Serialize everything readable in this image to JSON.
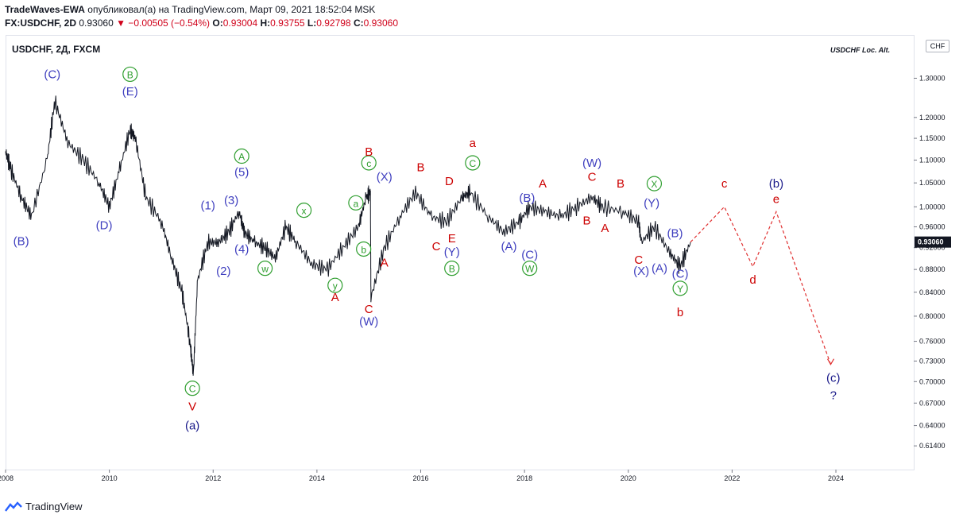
{
  "header": {
    "author": "TradeWaves-EWA",
    "published": "опубликовал(а) на TradingView.com, Март 09, 2021 18:52:04 MSK",
    "symbol_full": "FX:USDCHF, 2D",
    "price": "0.93060",
    "change": "▼ −0.00505 (−0.54%)",
    "o_label": "O:",
    "o": "0.93004",
    "h_label": "H:",
    "h": "0.93755",
    "l_label": "L:",
    "l": "0.92798",
    "c_label": "C:",
    "c": "0.93060"
  },
  "chart_header": {
    "symbol": "USDCHF, 2Д, FXCM",
    "note": "USDCHF Loc. Alt.",
    "currency": "CHF"
  },
  "footer": {
    "brand": "TradingView"
  },
  "colors": {
    "blue": "#3f3fbf",
    "red": "#cc0000",
    "green": "#2e9e2e",
    "navy": "#1a1a8a",
    "price_tag": "#131722"
  },
  "chart_data": {
    "type": "line",
    "price_scale": "log",
    "x_range": [
      2008.0,
      2025.5
    ],
    "y_range": [
      0.585,
      1.42
    ],
    "xticks": [
      "2008",
      "2010",
      "2012",
      "2014",
      "2016",
      "2018",
      "2020",
      "2022",
      "2024"
    ],
    "yticks": [
      "1.30000",
      "1.20000",
      "1.15000",
      "1.10000",
      "1.05000",
      "1.00000",
      "0.96000",
      "0.92000",
      "0.88000",
      "0.84000",
      "0.80000",
      "0.76000",
      "0.73000",
      "0.70000",
      "0.67000",
      "0.64000",
      "0.61400"
    ],
    "last_price_label": "0.93060",
    "series": [
      {
        "x": [
          2008.0,
          2008.1,
          2008.3,
          2008.5,
          2008.8,
          2008.95,
          2009.2,
          2009.5,
          2009.8,
          2010.0,
          2010.2,
          2010.4,
          2010.5,
          2010.7,
          2011.0,
          2011.2,
          2011.4,
          2011.55,
          2011.62,
          2011.7,
          2011.9,
          2012.1,
          2012.3,
          2012.5,
          2012.6,
          2012.8,
          2013.0,
          2013.2,
          2013.4,
          2013.6,
          2013.9,
          2014.2,
          2014.5,
          2014.8,
          2014.95,
          2015.03,
          2015.04,
          2015.3,
          2015.6,
          2015.9,
          2016.2,
          2016.5,
          2016.8,
          2016.95,
          2017.3,
          2017.6,
          2017.9,
          2018.1,
          2018.4,
          2018.7,
          2019.0,
          2019.3,
          2019.5,
          2019.9,
          2020.2,
          2020.25,
          2020.5,
          2020.8,
          2021.0,
          2021.2
        ],
        "y": [
          1.12,
          1.08,
          1.02,
          0.98,
          1.1,
          1.24,
          1.14,
          1.1,
          1.05,
          1.0,
          1.08,
          1.17,
          1.15,
          1.02,
          0.97,
          0.9,
          0.84,
          0.76,
          0.71,
          0.86,
          0.93,
          0.93,
          0.95,
          0.99,
          0.95,
          0.93,
          0.92,
          0.9,
          0.96,
          0.93,
          0.89,
          0.88,
          0.92,
          0.96,
          1.02,
          1.03,
          0.83,
          0.92,
          0.98,
          1.03,
          0.98,
          0.97,
          1.02,
          1.03,
          0.98,
          0.95,
          0.97,
          1.0,
          0.99,
          0.98,
          1.0,
          1.02,
          1.0,
          0.99,
          0.97,
          0.93,
          0.96,
          0.91,
          0.885,
          0.9306
        ]
      }
    ],
    "wave_labels": [
      {
        "text": "(B)",
        "x": 2008.3,
        "y": 0.925,
        "color": "blue"
      },
      {
        "text": "(C)",
        "x": 2008.9,
        "y": 1.3,
        "color": "blue"
      },
      {
        "text": "B",
        "x": 2010.4,
        "y": 1.3,
        "color": "green",
        "circle": true
      },
      {
        "text": "(E)",
        "x": 2010.4,
        "y": 1.255,
        "color": "blue"
      },
      {
        "text": "(D)",
        "x": 2009.9,
        "y": 0.955,
        "color": "blue"
      },
      {
        "text": "C",
        "x": 2011.6,
        "y": 0.685,
        "color": "green",
        "circle": true
      },
      {
        "text": "V",
        "x": 2011.6,
        "y": 0.66,
        "color": "red"
      },
      {
        "text": "(a)",
        "x": 2011.6,
        "y": 0.635,
        "color": "navy"
      },
      {
        "text": "(1)",
        "x": 2011.9,
        "y": 0.995,
        "color": "blue"
      },
      {
        "text": "(2)",
        "x": 2012.2,
        "y": 0.87,
        "color": "blue"
      },
      {
        "text": "(3)",
        "x": 2012.35,
        "y": 1.005,
        "color": "blue"
      },
      {
        "text": "(4)",
        "x": 2012.55,
        "y": 0.91,
        "color": "blue"
      },
      {
        "text": "(5)",
        "x": 2012.55,
        "y": 1.065,
        "color": "blue"
      },
      {
        "text": "A",
        "x": 2012.55,
        "y": 1.1,
        "color": "green",
        "circle": true
      },
      {
        "text": "w",
        "x": 2013.0,
        "y": 0.875,
        "color": "green",
        "circle": true
      },
      {
        "text": "x",
        "x": 2013.75,
        "y": 0.985,
        "color": "green",
        "circle": true
      },
      {
        "text": "y",
        "x": 2014.35,
        "y": 0.845,
        "color": "green",
        "circle": true
      },
      {
        "text": "A",
        "x": 2014.35,
        "y": 0.825,
        "color": "red"
      },
      {
        "text": "a",
        "x": 2014.75,
        "y": 1.0,
        "color": "green",
        "circle": true
      },
      {
        "text": "b",
        "x": 2014.9,
        "y": 0.91,
        "color": "green",
        "circle": true
      },
      {
        "text": "c",
        "x": 2015.0,
        "y": 1.085,
        "color": "green",
        "circle": true
      },
      {
        "text": "B",
        "x": 2015.0,
        "y": 1.11,
        "color": "red"
      },
      {
        "text": "(X)",
        "x": 2015.3,
        "y": 1.055,
        "color": "blue"
      },
      {
        "text": "A",
        "x": 2015.3,
        "y": 0.885,
        "color": "red"
      },
      {
        "text": "C",
        "x": 2015.0,
        "y": 0.805,
        "color": "red"
      },
      {
        "text": "(W)",
        "x": 2015.0,
        "y": 0.785,
        "color": "blue"
      },
      {
        "text": "B",
        "x": 2016.0,
        "y": 1.075,
        "color": "red"
      },
      {
        "text": "D",
        "x": 2016.55,
        "y": 1.045,
        "color": "red"
      },
      {
        "text": "C",
        "x": 2016.3,
        "y": 0.915,
        "color": "red"
      },
      {
        "text": "E",
        "x": 2016.6,
        "y": 0.93,
        "color": "red"
      },
      {
        "text": "(Y)",
        "x": 2016.6,
        "y": 0.905,
        "color": "blue"
      },
      {
        "text": "B",
        "x": 2016.6,
        "y": 0.875,
        "color": "green",
        "circle": true
      },
      {
        "text": "a",
        "x": 2017.0,
        "y": 1.13,
        "color": "red"
      },
      {
        "text": "C",
        "x": 2017.0,
        "y": 1.085,
        "color": "green",
        "circle": true
      },
      {
        "text": "(A)",
        "x": 2017.7,
        "y": 0.915,
        "color": "blue"
      },
      {
        "text": "(B)",
        "x": 2018.05,
        "y": 1.01,
        "color": "blue"
      },
      {
        "text": "A",
        "x": 2018.35,
        "y": 1.04,
        "color": "red"
      },
      {
        "text": "(C)",
        "x": 2018.1,
        "y": 0.9,
        "color": "blue"
      },
      {
        "text": "W",
        "x": 2018.1,
        "y": 0.875,
        "color": "green",
        "circle": true
      },
      {
        "text": "B",
        "x": 2019.2,
        "y": 0.965,
        "color": "red"
      },
      {
        "text": "(W)",
        "x": 2019.3,
        "y": 1.085,
        "color": "blue"
      },
      {
        "text": "C",
        "x": 2019.3,
        "y": 1.055,
        "color": "red"
      },
      {
        "text": "A",
        "x": 2019.55,
        "y": 0.95,
        "color": "red"
      },
      {
        "text": "B",
        "x": 2019.85,
        "y": 1.04,
        "color": "red"
      },
      {
        "text": "X",
        "x": 2020.5,
        "y": 1.04,
        "color": "green",
        "circle": true
      },
      {
        "text": "(Y)",
        "x": 2020.45,
        "y": 1.0,
        "color": "blue"
      },
      {
        "text": "(B)",
        "x": 2020.9,
        "y": 0.94,
        "color": "blue"
      },
      {
        "text": "C",
        "x": 2020.2,
        "y": 0.89,
        "color": "red"
      },
      {
        "text": "(X)",
        "x": 2020.25,
        "y": 0.87,
        "color": "blue"
      },
      {
        "text": "(A)",
        "x": 2020.6,
        "y": 0.875,
        "color": "blue"
      },
      {
        "text": "(C)",
        "x": 2021.0,
        "y": 0.865,
        "color": "blue"
      },
      {
        "text": "Y",
        "x": 2021.0,
        "y": 0.84,
        "color": "green",
        "circle": true
      },
      {
        "text": "b",
        "x": 2021.0,
        "y": 0.8,
        "color": "red"
      },
      {
        "text": "c",
        "x": 2021.85,
        "y": 1.04,
        "color": "red"
      },
      {
        "text": "(b)",
        "x": 2022.85,
        "y": 1.04,
        "color": "navy"
      },
      {
        "text": "e",
        "x": 2022.85,
        "y": 1.008,
        "color": "red"
      },
      {
        "text": "d",
        "x": 2022.4,
        "y": 0.855,
        "color": "red"
      },
      {
        "text": "(c)",
        "x": 2023.95,
        "y": 0.7,
        "color": "navy"
      },
      {
        "text": "?",
        "x": 2023.95,
        "y": 0.675,
        "color": "navy"
      }
    ],
    "projection": {
      "x": [
        2021.2,
        2021.85,
        2022.4,
        2022.85,
        2023.9
      ],
      "y": [
        0.9306,
        1.0,
        0.885,
        0.99,
        0.725
      ]
    }
  }
}
